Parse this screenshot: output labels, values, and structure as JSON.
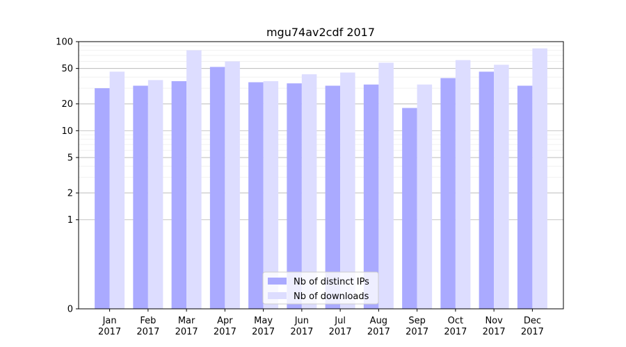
{
  "chart_data": {
    "type": "bar",
    "title": "mgu74av2cdf 2017",
    "xlabel": "",
    "ylabel": "",
    "y_scale": "symlog",
    "ylim": [
      0,
      100
    ],
    "y_ticks": [
      {
        "value": 0,
        "label": "0"
      },
      {
        "value": 1,
        "label": "1"
      },
      {
        "value": 2,
        "label": "2"
      },
      {
        "value": 5,
        "label": "5"
      },
      {
        "value": 10,
        "label": "10"
      },
      {
        "value": 20,
        "label": "20"
      },
      {
        "value": 50,
        "label": "50"
      },
      {
        "value": 100,
        "label": "100"
      }
    ],
    "categories": [
      {
        "month": "Jan",
        "year": "2017"
      },
      {
        "month": "Feb",
        "year": "2017"
      },
      {
        "month": "Mar",
        "year": "2017"
      },
      {
        "month": "Apr",
        "year": "2017"
      },
      {
        "month": "May",
        "year": "2017"
      },
      {
        "month": "Jun",
        "year": "2017"
      },
      {
        "month": "Jul",
        "year": "2017"
      },
      {
        "month": "Aug",
        "year": "2017"
      },
      {
        "month": "Sep",
        "year": "2017"
      },
      {
        "month": "Oct",
        "year": "2017"
      },
      {
        "month": "Nov",
        "year": "2017"
      },
      {
        "month": "Dec",
        "year": "2017"
      }
    ],
    "series": [
      {
        "name": "Nb of distinct IPs",
        "color": "#aaaaff",
        "values": [
          30,
          32,
          36,
          52,
          35,
          34,
          32,
          33,
          18,
          39,
          46,
          32
        ]
      },
      {
        "name": "Nb of downloads",
        "color": "#ddddff",
        "values": [
          46,
          37,
          80,
          60,
          36,
          43,
          45,
          58,
          33,
          62,
          55,
          84
        ]
      }
    ],
    "grid": true,
    "legend_position": "lower-center"
  }
}
